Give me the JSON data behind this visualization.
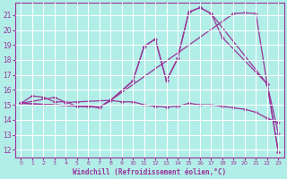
{
  "xlabel": "Windchill (Refroidissement éolien,°C)",
  "bg_color": "#b2eee8",
  "line_color": "#993399",
  "grid_color": "#ffffff",
  "xlim": [
    -0.5,
    23.5
  ],
  "ylim": [
    11.5,
    21.8
  ],
  "yticks": [
    12,
    13,
    14,
    15,
    16,
    17,
    18,
    19,
    20,
    21
  ],
  "xticks": [
    0,
    1,
    2,
    3,
    4,
    5,
    6,
    7,
    8,
    9,
    10,
    11,
    12,
    13,
    14,
    15,
    16,
    17,
    18,
    19,
    20,
    21,
    22,
    23
  ],
  "series1_x": [
    0,
    1,
    2,
    3,
    4,
    5,
    6,
    7,
    8,
    9,
    10,
    11,
    12,
    13,
    14,
    15,
    16,
    17,
    18,
    19,
    20,
    21,
    22,
    23
  ],
  "series1_y": [
    15.1,
    15.6,
    15.5,
    15.2,
    15.2,
    14.9,
    14.9,
    14.8,
    15.3,
    15.2,
    15.2,
    15.0,
    14.9,
    14.85,
    14.9,
    15.1,
    15.0,
    15.0,
    14.9,
    14.8,
    14.7,
    14.5,
    14.1,
    13.8
  ],
  "series2_x": [
    0,
    3,
    4,
    5,
    8,
    10,
    11,
    12,
    13,
    14,
    15,
    16,
    17,
    18,
    22,
    23
  ],
  "series2_y": [
    15.1,
    15.5,
    15.15,
    15.2,
    15.3,
    16.6,
    18.9,
    19.4,
    16.6,
    18.1,
    21.2,
    21.5,
    21.1,
    19.5,
    16.4,
    13.1
  ],
  "series3_x": [
    0,
    7,
    8,
    10,
    11,
    12,
    13,
    14,
    15,
    16,
    17,
    22,
    23
  ],
  "series3_y": [
    15.1,
    14.85,
    15.3,
    16.6,
    18.9,
    19.4,
    16.6,
    18.1,
    21.2,
    21.5,
    21.1,
    16.4,
    11.85
  ],
  "series4_x": [
    0,
    7,
    8,
    19,
    20,
    21,
    22,
    23
  ],
  "series4_y": [
    15.1,
    14.85,
    15.3,
    21.1,
    21.15,
    21.1,
    16.4,
    11.85
  ]
}
